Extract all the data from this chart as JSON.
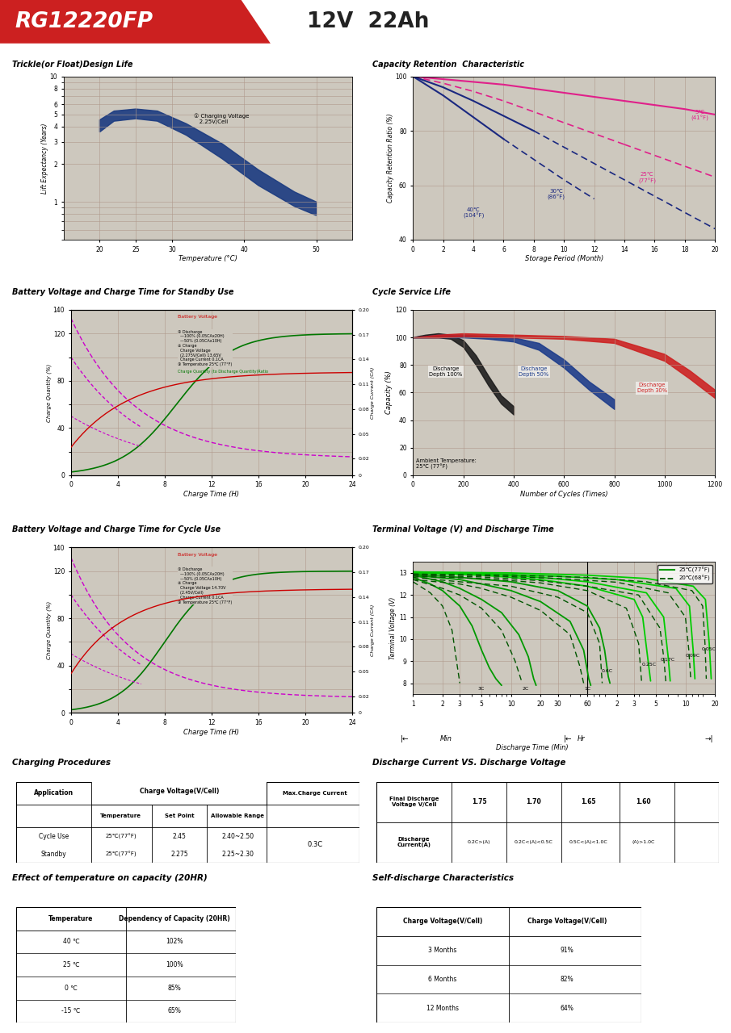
{
  "title_model": "RG12220FP",
  "title_spec": "12V  22Ah",
  "trickle_title": "Trickle(or Float)Design Life",
  "trickle_xlabel": "Temperature (°C)",
  "trickle_ylabel": "Lift Expectancy (Years)",
  "cap_ret_title": "Capacity Retention  Characteristic",
  "cap_ret_xlabel": "Storage Period (Month)",
  "cap_ret_ylabel": "Capacity Retention Ratio (%)",
  "standby_title": "Battery Voltage and Charge Time for Standby Use",
  "cycle_charge_title": "Battery Voltage and Charge Time for Cycle Use",
  "cycle_service_title": "Cycle Service Life",
  "terminal_title": "Terminal Voltage (V) and Discharge Time",
  "charging_title": "Charging Procedures",
  "discharge_iv_title": "Discharge Current VS. Discharge Voltage",
  "temp_cap_title": "Effect of temperature on capacity (20HR)",
  "self_discharge_title": "Self-discharge Characteristics",
  "temp_cap_rows": [
    [
      "40 ℃",
      "102%"
    ],
    [
      "25 ℃",
      "100%"
    ],
    [
      "0 ℃",
      "85%"
    ],
    [
      "-15 ℃",
      "65%"
    ]
  ],
  "self_discharge_rows": [
    [
      "3 Months",
      "91%"
    ],
    [
      "6 Months",
      "82%"
    ],
    [
      "12 Months",
      "64%"
    ]
  ],
  "section_bg": "#cdc8be",
  "plot_bg": "#cdc8be",
  "grid_color": "#b0998a",
  "white_bg": "#ffffff"
}
